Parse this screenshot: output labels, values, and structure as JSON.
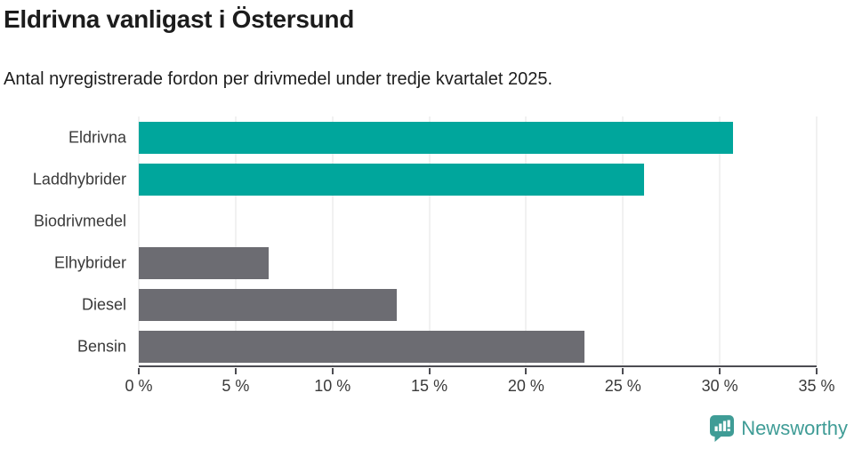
{
  "title": "Eldrivna vanligast i Östersund",
  "subtitle": "Antal nyregistrerade fordon per drivmedel under tredje kvartalet 2025.",
  "chart_data": {
    "type": "bar",
    "orientation": "horizontal",
    "title": "Eldrivna vanligast i Östersund",
    "subtitle": "Antal nyregistrerade fordon per drivmedel under tredje kvartalet 2025.",
    "categories": [
      "Eldrivna",
      "Laddhybrider",
      "Biodrivmedel",
      "Elhybrider",
      "Diesel",
      "Bensin"
    ],
    "values": [
      30.7,
      26.1,
      0,
      6.7,
      13.3,
      23.0
    ],
    "unit": "%",
    "xlabel": "",
    "ylabel": "",
    "xlim": [
      0,
      35
    ],
    "xticks": [
      0,
      5,
      10,
      15,
      20,
      25,
      30,
      35
    ],
    "xtick_format": "{v} %",
    "grid": "vertical",
    "legend": "none",
    "bar_colors": [
      "#00a69c",
      "#00a69c",
      "#6c6c72",
      "#6c6c72",
      "#6c6c72",
      "#6c6c72"
    ]
  },
  "colors": {
    "highlight_teal": "#00a69c",
    "neutral_gray": "#6c6c72",
    "gridline": "#e3e3e3",
    "axis": "#4c4c52",
    "text_dark": "#1c1c1c",
    "tick_text": "#3a3a3a",
    "brand_teal": "#3f9c96"
  },
  "branding": {
    "name": "Newsworthy",
    "icon": "newsworthy-logo-icon"
  }
}
